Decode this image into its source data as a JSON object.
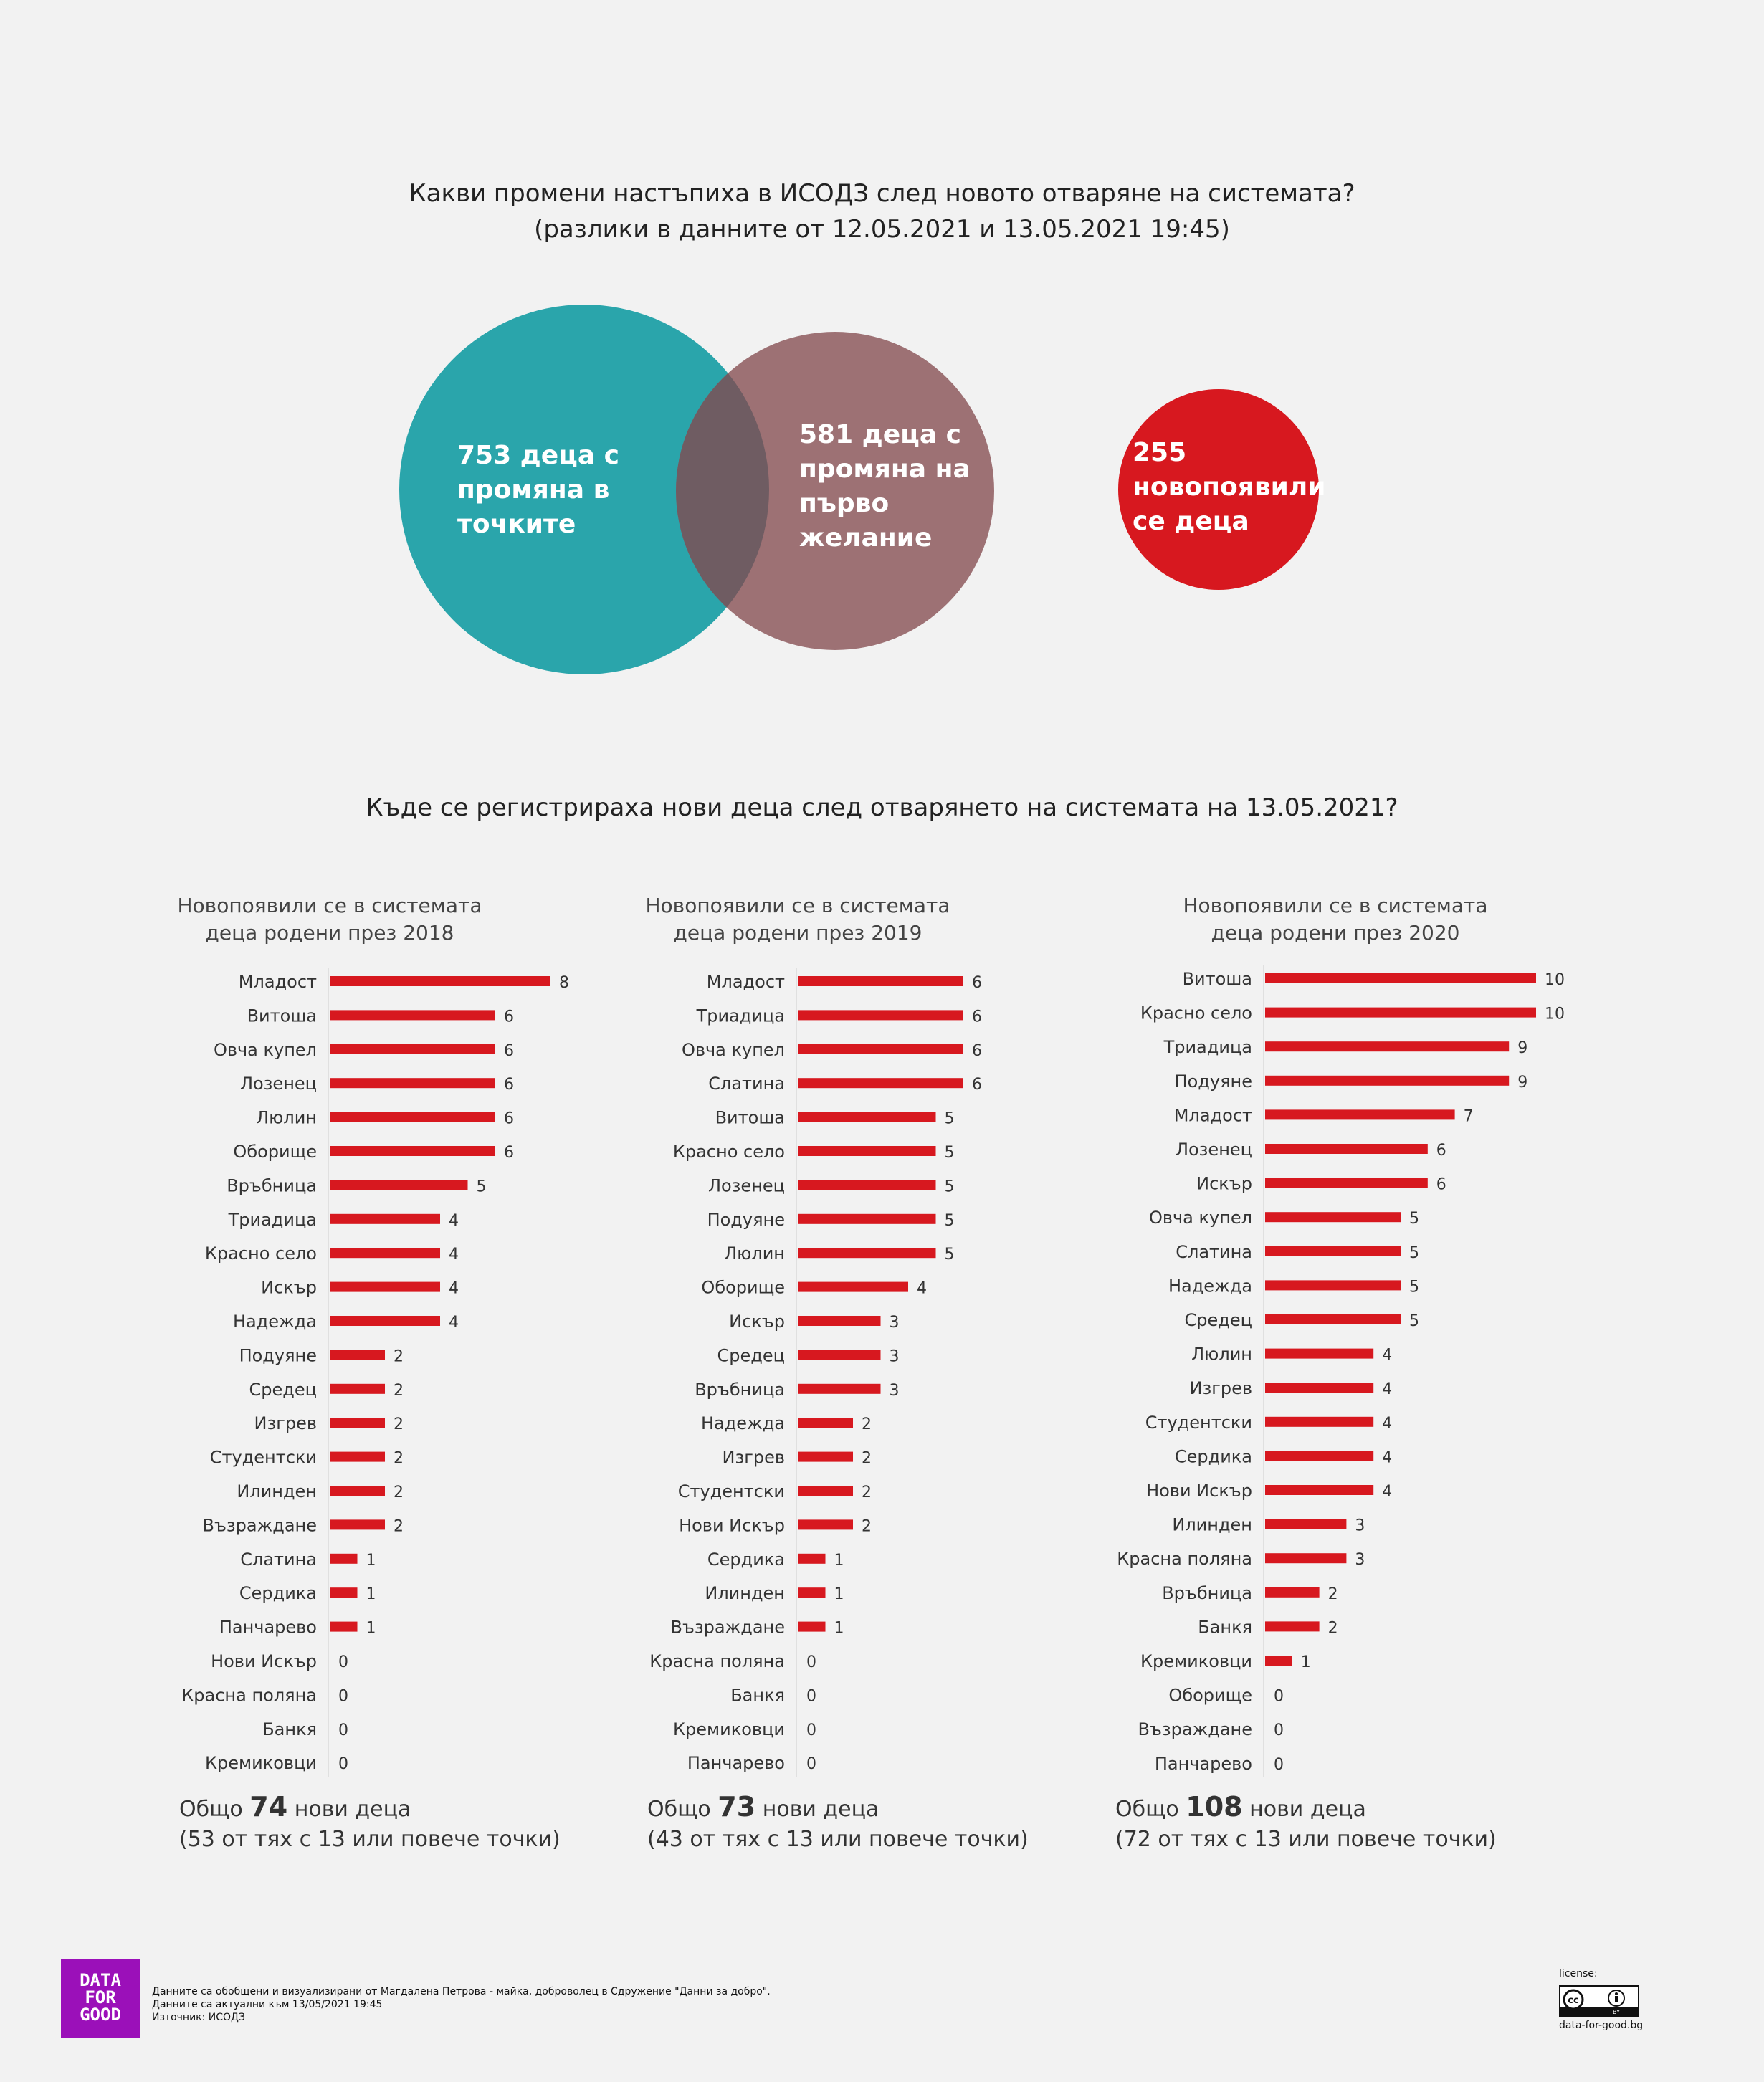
{
  "title_main": "Какви промени настъпиха в ИСОДЗ след новото отваряне на системата?",
  "title_sub": "(разлики в данните от 12.05.2021 и 13.05.2021 19:45)",
  "venn": {
    "circle1": {
      "lines": [
        "753 деца с",
        "промяна в",
        "точките"
      ],
      "color": "#2aa5ab"
    },
    "circle2": {
      "lines": [
        "581 деца с",
        "промяна на",
        "първо",
        "желание"
      ],
      "color": "#9d7174"
    },
    "overlap_color": "#6f5c62",
    "circle3": {
      "lines": [
        "255",
        "новопоявили",
        "се деца"
      ],
      "color": "#d7181f"
    }
  },
  "section_title": "Къде се регистрираха нови деца след отварянето на системата на 13.05.2021?",
  "bar_color": "#d7181f",
  "chart_data": [
    {
      "type": "bar",
      "orientation": "horizontal",
      "title_lines": [
        "Новопоявили се в системата",
        "деца родени през 2018"
      ],
      "categories": [
        "Младост",
        "Витоша",
        "Овча купел",
        "Лозенец",
        "Люлин",
        "Оборище",
        "Връбница",
        "Триадица",
        "Красно село",
        "Искър",
        "Надежда",
        "Подуяне",
        "Средец",
        "Изгрев",
        "Студентски",
        "Илинден",
        "Възраждане",
        "Слатина",
        "Сердика",
        "Панчарево",
        "Нови Искър",
        "Красна поляна",
        "Банкя",
        "Кремиковци"
      ],
      "values": [
        8,
        6,
        6,
        6,
        6,
        6,
        5,
        4,
        4,
        4,
        4,
        2,
        2,
        2,
        2,
        2,
        2,
        1,
        1,
        1,
        0,
        0,
        0,
        0
      ],
      "total": {
        "prefix": "Общо",
        "value": "74",
        "suffix": "нови деца",
        "note": "(53 от тях с 13 или повече точки)"
      }
    },
    {
      "type": "bar",
      "orientation": "horizontal",
      "title_lines": [
        "Новопоявили се в системата",
        "деца родени през 2019"
      ],
      "categories": [
        "Младост",
        "Триадица",
        "Овча купел",
        "Слатина",
        "Витоша",
        "Красно село",
        "Лозенец",
        "Подуяне",
        "Люлин",
        "Оборище",
        "Искър",
        "Средец",
        "Връбница",
        "Надежда",
        "Изгрев",
        "Студентски",
        "Нови Искър",
        "Сердика",
        "Илинден",
        "Възраждане",
        "Красна поляна",
        "Банкя",
        "Кремиковци",
        "Панчарево"
      ],
      "values": [
        6,
        6,
        6,
        6,
        5,
        5,
        5,
        5,
        5,
        4,
        3,
        3,
        3,
        2,
        2,
        2,
        2,
        1,
        1,
        1,
        0,
        0,
        0,
        0
      ],
      "total": {
        "prefix": "Общо",
        "value": "73",
        "suffix": "нови деца",
        "note": "(43 от тях с 13 или повече точки)"
      }
    },
    {
      "type": "bar",
      "orientation": "horizontal",
      "title_lines": [
        "Новопоявили се в системата",
        "деца родени през 2020"
      ],
      "categories": [
        "Витоша",
        "Красно село",
        "Триадица",
        "Подуяне",
        "Младост",
        "Лозенец",
        "Искър",
        "Овча купел",
        "Слатина",
        "Надежда",
        "Средец",
        "Люлин",
        "Изгрев",
        "Студентски",
        "Сердика",
        "Нови Искър",
        "Илинден",
        "Красна поляна",
        "Връбница",
        "Банкя",
        "Кремиковци",
        "Оборище",
        "Възраждане",
        "Панчарево"
      ],
      "values": [
        10,
        10,
        9,
        9,
        7,
        6,
        6,
        5,
        5,
        5,
        5,
        4,
        4,
        4,
        4,
        4,
        3,
        3,
        2,
        2,
        1,
        0,
        0,
        0
      ],
      "total": {
        "prefix": "Общо",
        "value": "108",
        "suffix": "нови деца",
        "note": "(72 от тях с 13 или повече точки)"
      }
    }
  ],
  "footer": {
    "logo_lines": [
      "DATA",
      "FOR",
      "GOOD"
    ],
    "credit": "Данните са обобщени и визуализирани от Магдалена Петрова - майка, доброволец в Сдружение \"Данни за добро\".",
    "updated": "Данните са актуални към 13/05/2021 19:45",
    "source": "Източник: ИСОДЗ",
    "license_label": "license:",
    "cc_text": "cc",
    "by_text": "BY",
    "site": "data-for-good.bg"
  }
}
